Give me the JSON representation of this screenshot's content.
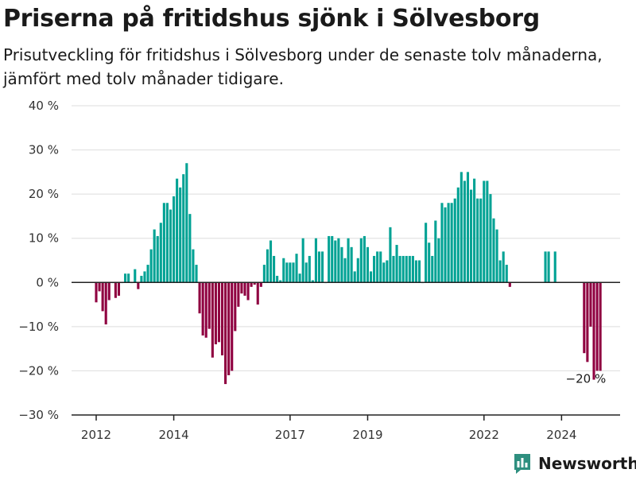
{
  "header": {
    "title": "Priserna på fritidshus sjönk i Sölvesborg",
    "subtitle": "Prisutveckling för fritidshus i Sölvesborg under de senaste tolv månaderna, jämfört med tolv månader tidigare."
  },
  "colors": {
    "positive": "#00a294",
    "negative": "#8f0040",
    "grid": "#dddddd",
    "zero_line": "#222222",
    "brand": "#2e8f7f"
  },
  "brand": {
    "name": "Newsworthy",
    "icon": "bar-chart-logo-icon"
  },
  "chart_data": {
    "type": "bar",
    "title": "",
    "xlabel": "",
    "ylabel": "",
    "ylim": [
      -30,
      40
    ],
    "y_ticks": [
      40,
      30,
      20,
      10,
      0,
      -10,
      -20,
      -30
    ],
    "y_tick_labels": [
      "40 %",
      "30 %",
      "20 %",
      "10 %",
      "0 %",
      "−10 %",
      "−20 %",
      "−30 %"
    ],
    "x_ticks": [
      {
        "label": "2012",
        "month_index": 0
      },
      {
        "label": "2014",
        "month_index": 24
      },
      {
        "label": "2017",
        "month_index": 60
      },
      {
        "label": "2019",
        "month_index": 84
      },
      {
        "label": "2022",
        "month_index": 120
      },
      {
        "label": "2024",
        "month_index": 144
      }
    ],
    "start": "2012-01",
    "frequency": "monthly",
    "grid": true,
    "values": [
      -4.5,
      -2,
      -6.5,
      -9.5,
      -4,
      0,
      -3.5,
      -3,
      0,
      2,
      2,
      0,
      3,
      -1.5,
      1.5,
      2.5,
      4,
      7.5,
      12,
      10.5,
      13.5,
      18,
      18,
      16.5,
      19.5,
      23.5,
      21.5,
      24.5,
      27,
      15.5,
      7.5,
      4,
      -7,
      -12,
      -12.5,
      -10.5,
      -17,
      -14,
      -13.5,
      -16.5,
      -23,
      -21,
      -20,
      -11,
      -5.5,
      -2.5,
      -3,
      -4,
      -1,
      -0.5,
      -5,
      -1,
      4,
      7.5,
      9.5,
      6,
      1.5,
      0.5,
      5.5,
      4.5,
      4.5,
      4.5,
      6.5,
      2,
      10,
      4.5,
      6,
      0.5,
      10,
      7,
      7,
      0,
      10.5,
      10.5,
      9.5,
      10,
      8,
      5.5,
      10,
      8,
      2.5,
      5.5,
      10,
      10.5,
      8,
      2.5,
      6,
      7,
      7,
      4.5,
      5,
      12.5,
      6,
      8.5,
      6,
      6,
      6,
      6,
      6,
      5,
      5,
      0,
      13.5,
      9,
      6,
      14,
      10,
      18,
      17,
      18,
      18,
      19,
      21.5,
      25,
      23,
      25,
      21,
      23.5,
      19,
      19,
      23,
      23,
      20,
      14.5,
      12,
      5,
      7,
      4,
      -1,
      null,
      null,
      null,
      null,
      null,
      null,
      null,
      null,
      null,
      null,
      7,
      7,
      null,
      7,
      null,
      null,
      null,
      null,
      null,
      null,
      null,
      null,
      -16,
      -18,
      -10,
      -22,
      -20,
      -20
    ],
    "annotations": [
      {
        "text": "−20 %",
        "month_index": 152
      }
    ]
  }
}
